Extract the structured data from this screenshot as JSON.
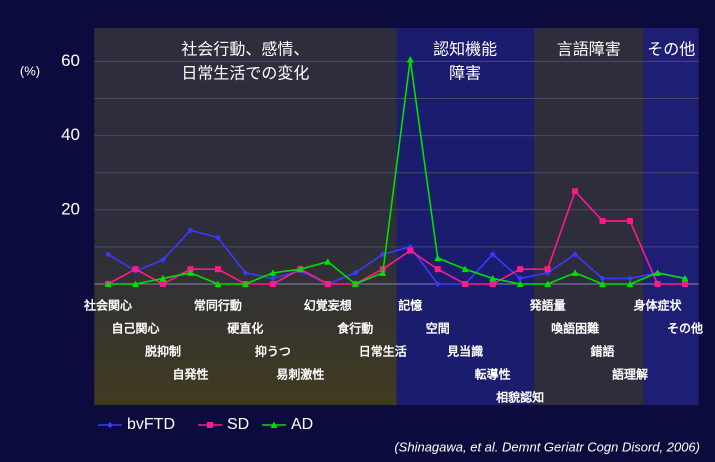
{
  "chart_data": {
    "type": "line",
    "y_label": "(%)",
    "categories": [
      "社会関心",
      "自己関心",
      "脱抑制",
      "自発性",
      "常同行動",
      "硬直化",
      "抑うつ",
      "易刺激性",
      "幻覚妄想",
      "食行動",
      "日常生活",
      "記憶",
      "空間",
      "見当識",
      "転導性",
      "相貌認知",
      "発語量",
      "喚語困難",
      "錯語",
      "語理解",
      "身体症状",
      "その他"
    ],
    "series": [
      {
        "name": "bvFTD",
        "color": "#3a3aff",
        "marker": "diamond",
        "values": [
          8,
          3.5,
          6.5,
          14.5,
          12.5,
          3,
          1.5,
          3.5,
          0,
          3,
          8,
          10,
          0,
          0,
          8,
          1.5,
          3,
          8,
          1.5,
          1.5,
          3,
          1.5
        ]
      },
      {
        "name": "SD",
        "color": "#ff1a8c",
        "marker": "square",
        "values": [
          0,
          4,
          0,
          4,
          4,
          0,
          0,
          4,
          0,
          0,
          4,
          9,
          4,
          0,
          0,
          4,
          4,
          25,
          17,
          17,
          0,
          0
        ]
      },
      {
        "name": "AD",
        "color": "#00e000",
        "marker": "triangle",
        "values": [
          0,
          0,
          1.5,
          3,
          0,
          0,
          3,
          4,
          6,
          0,
          3,
          60.5,
          7,
          4,
          1.5,
          0,
          0,
          3,
          0,
          0,
          3,
          1.5
        ]
      }
    ],
    "regions": [
      {
        "label": [
          "社会行動、感情、",
          "日常生活での変化"
        ],
        "span": 11,
        "color": "#2d2d3c"
      },
      {
        "label": [
          "認知機能",
          "障害"
        ],
        "span": 5,
        "color": "#1c1c6e"
      },
      {
        "label": [
          "言語障害"
        ],
        "span": 4,
        "color": "#2d2d3c"
      },
      {
        "label": [
          "その他"
        ],
        "span": 2,
        "color": "#1e1e74"
      }
    ],
    "ylim": [
      0,
      69
    ],
    "yticks": [
      20,
      40,
      60
    ],
    "grid_lines": [
      10,
      20,
      30,
      40,
      50,
      60
    ],
    "legend": "bottom-left",
    "source": "(Shinagawa, et al. Demnt Geriatr Cogn Disord, 2006)"
  }
}
